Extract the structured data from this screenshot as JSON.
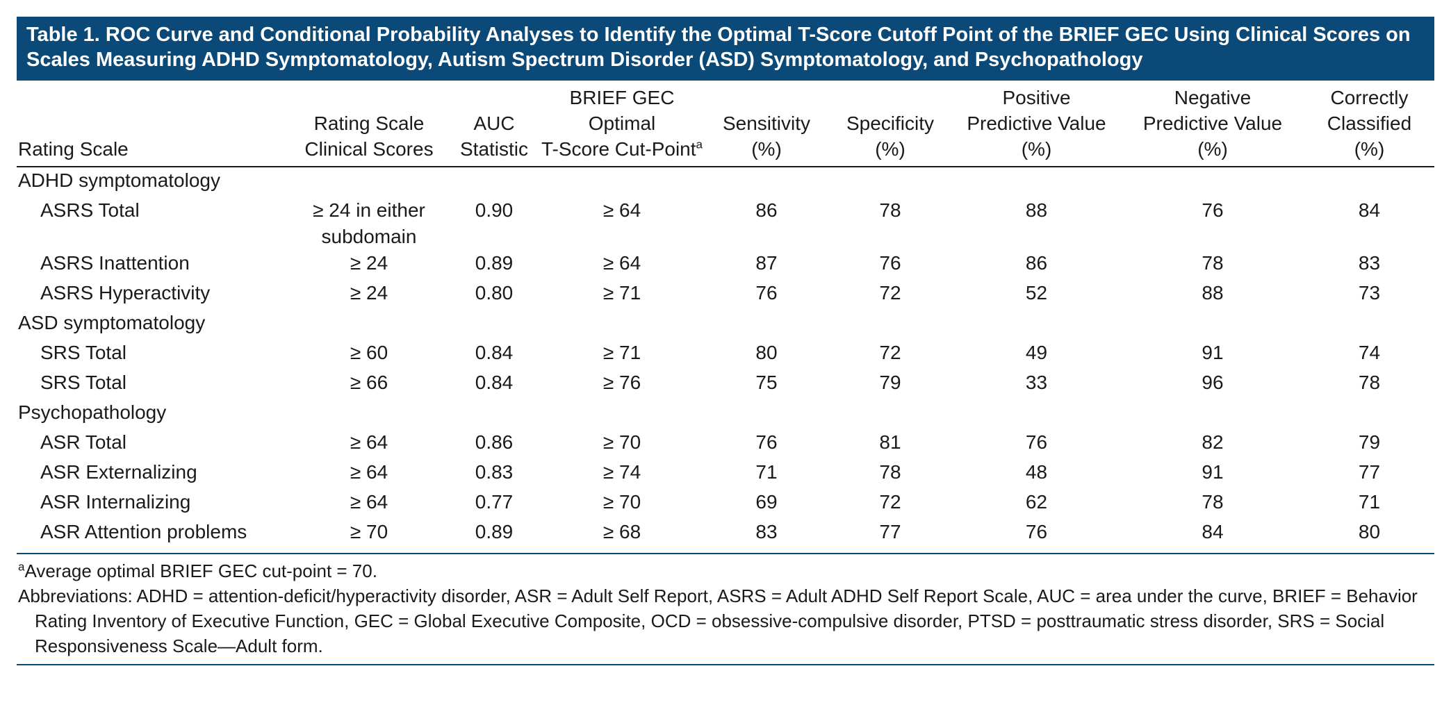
{
  "title": "Table 1. ROC Curve and Conditional Probability Analyses to Identify the Optimal T-Score Cutoff Point of the BRIEF GEC Using Clinical Scores on Scales Measuring ADHD Symptomatology, Autism Spectrum Disorder (ASD) Symptomatology, and Psychopathology",
  "headers": {
    "rating_scale": "Rating Scale",
    "clinical_scores": [
      "Rating Scale",
      "Clinical Scores"
    ],
    "auc": [
      "AUC",
      "Statistic"
    ],
    "cutpoint": [
      "BRIEF GEC Optimal",
      "T-Score Cut-Point"
    ],
    "cutpoint_sup": "a",
    "sensitivity": [
      "Sensitivity",
      "(%)"
    ],
    "specificity": [
      "Specificity",
      "(%)"
    ],
    "ppv": [
      "Positive",
      "Predictive Value",
      "(%)"
    ],
    "npv": [
      "Negative",
      "Predictive Value",
      "(%)"
    ],
    "correct": [
      "Correctly",
      "Classified",
      "(%)"
    ]
  },
  "sections": [
    {
      "label": "ADHD symptomatology",
      "rows": [
        {
          "scale": "ASRS Total",
          "clinical": [
            "≥ 24 in either",
            "subdomain"
          ],
          "auc": "0.90",
          "cut": "≥ 64",
          "sens": "86",
          "spec": "78",
          "ppv": "88",
          "npv": "76",
          "cc": "84"
        },
        {
          "scale": "ASRS Inattention",
          "clinical": [
            "≥ 24"
          ],
          "auc": "0.89",
          "cut": "≥ 64",
          "sens": "87",
          "spec": "76",
          "ppv": "86",
          "npv": "78",
          "cc": "83"
        },
        {
          "scale": "ASRS Hyperactivity",
          "clinical": [
            "≥ 24"
          ],
          "auc": "0.80",
          "cut": "≥ 71",
          "sens": "76",
          "spec": "72",
          "ppv": "52",
          "npv": "88",
          "cc": "73"
        }
      ]
    },
    {
      "label": "ASD symptomatology",
      "rows": [
        {
          "scale": "SRS Total",
          "clinical": [
            "≥ 60"
          ],
          "auc": "0.84",
          "cut": "≥ 71",
          "sens": "80",
          "spec": "72",
          "ppv": "49",
          "npv": "91",
          "cc": "74"
        },
        {
          "scale": "SRS Total",
          "clinical": [
            "≥ 66"
          ],
          "auc": "0.84",
          "cut": "≥ 76",
          "sens": "75",
          "spec": "79",
          "ppv": "33",
          "npv": "96",
          "cc": "78"
        }
      ]
    },
    {
      "label": "Psychopathology",
      "rows": [
        {
          "scale": "ASR Total",
          "clinical": [
            "≥ 64"
          ],
          "auc": "0.86",
          "cut": "≥ 70",
          "sens": "76",
          "spec": "81",
          "ppv": "76",
          "npv": "82",
          "cc": "79"
        },
        {
          "scale": "ASR Externalizing",
          "clinical": [
            "≥ 64"
          ],
          "auc": "0.83",
          "cut": "≥ 74",
          "sens": "71",
          "spec": "78",
          "ppv": "48",
          "npv": "91",
          "cc": "77"
        },
        {
          "scale": "ASR Internalizing",
          "clinical": [
            "≥ 64"
          ],
          "auc": "0.77",
          "cut": "≥ 70",
          "sens": "69",
          "spec": "72",
          "ppv": "62",
          "npv": "78",
          "cc": "71"
        },
        {
          "scale": "ASR Attention problems",
          "clinical": [
            "≥ 70"
          ],
          "auc": "0.89",
          "cut": "≥ 68",
          "sens": "83",
          "spec": "77",
          "ppv": "76",
          "npv": "84",
          "cc": "80"
        }
      ]
    }
  ],
  "footnote": {
    "sup": "a",
    "text": "Average optimal BRIEF GEC cut-point = 70."
  },
  "abbreviations": "Abbreviations: ADHD = attention-deficit/hyperactivity disorder, ASR = Adult Self Report, ASRS = Adult ADHD Self Report Scale, AUC = area under the curve, BRIEF = Behavior Rating Inventory of Executive Function, GEC = Global Executive Composite, OCD = obsessive-compulsive disorder, PTSD = posttraumatic stress disorder, SRS = Social Responsiveness Scale—Adult form.",
  "colors": {
    "title_bg": "#0b4a78",
    "title_text": "#ffffff",
    "rule": "#0b4a78"
  }
}
